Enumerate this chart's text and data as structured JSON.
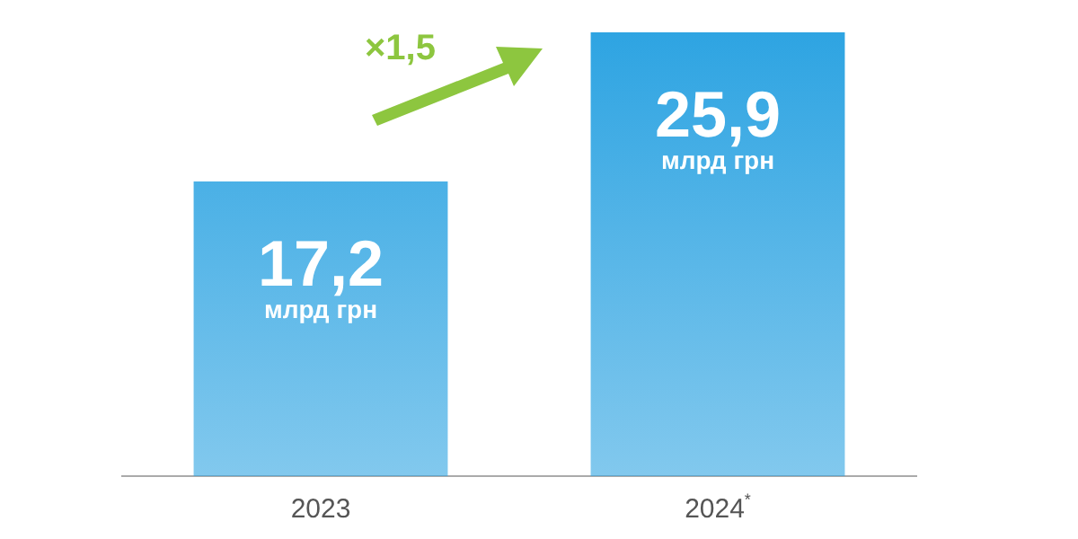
{
  "chart_data": {
    "type": "bar",
    "categories": [
      "2023",
      "2024$^{*}$"
    ],
    "values": [
      17.2,
      25.9
    ],
    "color": "#2ea4e2",
    "value_labels": [
      "17,2\nмлрд грн",
      "25,9\nмлрд грн"
    ],
    "annotations": [
      "×1,5"
    ],
    "grid": false,
    "legend": false
  }
}
